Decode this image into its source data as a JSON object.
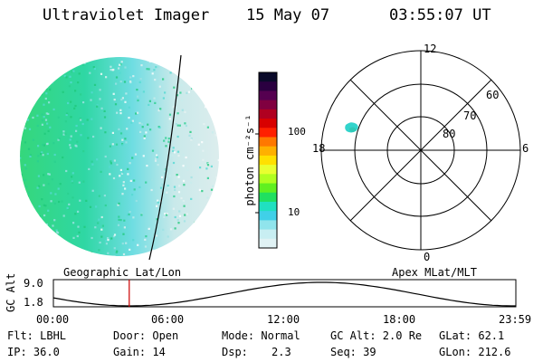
{
  "header": {
    "instrument": "Ultraviolet Imager",
    "date": "15 May 07",
    "time": "03:55:07 UT"
  },
  "colorbar": {
    "unit_label": "photon cm⁻²s⁻¹",
    "tick_labels": [
      "100",
      "10"
    ],
    "colors": [
      "#0a0a2a",
      "#2a0040",
      "#550050",
      "#800040",
      "#b00020",
      "#d80000",
      "#ff2000",
      "#ff7800",
      "#ffb000",
      "#ffe000",
      "#e8ff30",
      "#b0ff20",
      "#60f020",
      "#20e060",
      "#20e0c0",
      "#40d0e8",
      "#90e4ec",
      "#c8eef2",
      "#e0f2f4"
    ]
  },
  "left_panel": {
    "label": "Geographic Lat/Lon"
  },
  "polar_plot": {
    "label": "Apex MLat/MLT",
    "mlt_labels": {
      "top": "12",
      "bottom": "0",
      "left": "18",
      "right": "6"
    },
    "mlat_labels": [
      "60",
      "70",
      "80"
    ]
  },
  "timeline": {
    "ylabel": "GC Alt",
    "y_top": "9.0",
    "y_bottom": "1.8",
    "x_ticks": [
      "00:00",
      "06:00",
      "12:00",
      "18:00",
      "23:59"
    ],
    "current_time_fraction": 0.164
  },
  "info": {
    "flt": "Flt: LBHL",
    "ip": "IP: 36.0",
    "door": "Door: Open",
    "gain": "Gain: 14",
    "mode": "Mode: Normal",
    "dsp_label": "Dsp:",
    "dsp_value": "2.3",
    "gc_alt": "GC Alt: 2.0 Re",
    "seq": "Seq: 39",
    "glat": "GLat: 62.1",
    "glon": "GLon: 212.6"
  }
}
